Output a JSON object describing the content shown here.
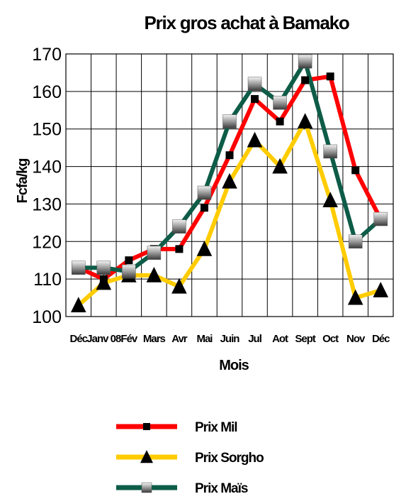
{
  "chart_data": {
    "type": "line",
    "title": "Prix  gros achat à Bamako",
    "xlabel": "Mois",
    "ylabel": "Fcfa/kg",
    "categories": [
      "Déc",
      "Janv 08",
      "Fév",
      "Mars",
      "Avr",
      "Mai",
      "Juin",
      "Jul",
      "Aot",
      "Sept",
      "Oct",
      "Nov",
      "Déc"
    ],
    "ylim": [
      100,
      170
    ],
    "yticks": [
      100,
      110,
      120,
      130,
      140,
      150,
      160,
      170
    ],
    "grid": true,
    "legend_position": "bottom",
    "series": [
      {
        "name": "Prix Mil",
        "color": "#ff0000",
        "marker": "square-black",
        "values": [
          113,
          110,
          115,
          118,
          118,
          129,
          143,
          158,
          152,
          163,
          164,
          139,
          126
        ]
      },
      {
        "name": "Prix Sorgho",
        "color": "#ffcc00",
        "marker": "triangle-black",
        "values": [
          103,
          109,
          111,
          111,
          108,
          118,
          136,
          147,
          140,
          152,
          131,
          105,
          107
        ]
      },
      {
        "name": "Prix Maïs",
        "color": "#0d5c47",
        "marker": "square-gradient",
        "values": [
          113,
          113,
          112,
          117,
          124,
          133,
          152,
          162,
          157,
          168,
          144,
          120,
          126
        ]
      }
    ]
  }
}
